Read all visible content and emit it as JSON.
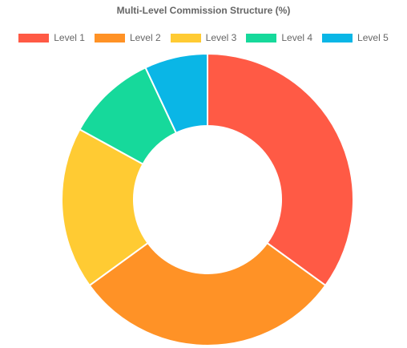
{
  "chart_data": {
    "type": "pie",
    "variant": "doughnut",
    "title": "Multi-Level Commission Structure (%)",
    "categories": [
      "Level 1",
      "Level 2",
      "Level 3",
      "Level 4",
      "Level 5"
    ],
    "values": [
      35,
      30,
      18,
      10,
      7
    ],
    "colors": [
      "#ff5a45",
      "#ff9226",
      "#ffcb33",
      "#16d99b",
      "#0ab6e6"
    ],
    "legend_placement": "top",
    "grid": false
  }
}
